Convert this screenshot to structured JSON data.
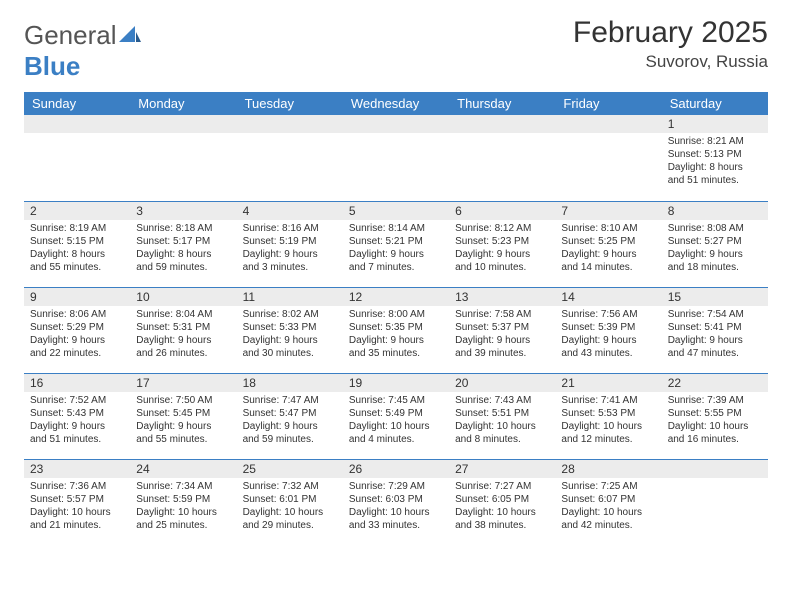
{
  "brand": {
    "text1": "General",
    "text2": "Blue"
  },
  "title": "February 2025",
  "location": "Suvorov, Russia",
  "headerBar": {
    "bg": "#3b7fc4",
    "fg": "#ffffff"
  },
  "dayHeaders": [
    "Sunday",
    "Monday",
    "Tuesday",
    "Wednesday",
    "Thursday",
    "Friday",
    "Saturday"
  ],
  "weeks": [
    [
      {
        "n": "",
        "sunrise": "",
        "sunset": "",
        "daylight": ""
      },
      {
        "n": "",
        "sunrise": "",
        "sunset": "",
        "daylight": ""
      },
      {
        "n": "",
        "sunrise": "",
        "sunset": "",
        "daylight": ""
      },
      {
        "n": "",
        "sunrise": "",
        "sunset": "",
        "daylight": ""
      },
      {
        "n": "",
        "sunrise": "",
        "sunset": "",
        "daylight": ""
      },
      {
        "n": "",
        "sunrise": "",
        "sunset": "",
        "daylight": ""
      },
      {
        "n": "1",
        "sunrise": "Sunrise: 8:21 AM",
        "sunset": "Sunset: 5:13 PM",
        "daylight": "Daylight: 8 hours and 51 minutes."
      }
    ],
    [
      {
        "n": "2",
        "sunrise": "Sunrise: 8:19 AM",
        "sunset": "Sunset: 5:15 PM",
        "daylight": "Daylight: 8 hours and 55 minutes."
      },
      {
        "n": "3",
        "sunrise": "Sunrise: 8:18 AM",
        "sunset": "Sunset: 5:17 PM",
        "daylight": "Daylight: 8 hours and 59 minutes."
      },
      {
        "n": "4",
        "sunrise": "Sunrise: 8:16 AM",
        "sunset": "Sunset: 5:19 PM",
        "daylight": "Daylight: 9 hours and 3 minutes."
      },
      {
        "n": "5",
        "sunrise": "Sunrise: 8:14 AM",
        "sunset": "Sunset: 5:21 PM",
        "daylight": "Daylight: 9 hours and 7 minutes."
      },
      {
        "n": "6",
        "sunrise": "Sunrise: 8:12 AM",
        "sunset": "Sunset: 5:23 PM",
        "daylight": "Daylight: 9 hours and 10 minutes."
      },
      {
        "n": "7",
        "sunrise": "Sunrise: 8:10 AM",
        "sunset": "Sunset: 5:25 PM",
        "daylight": "Daylight: 9 hours and 14 minutes."
      },
      {
        "n": "8",
        "sunrise": "Sunrise: 8:08 AM",
        "sunset": "Sunset: 5:27 PM",
        "daylight": "Daylight: 9 hours and 18 minutes."
      }
    ],
    [
      {
        "n": "9",
        "sunrise": "Sunrise: 8:06 AM",
        "sunset": "Sunset: 5:29 PM",
        "daylight": "Daylight: 9 hours and 22 minutes."
      },
      {
        "n": "10",
        "sunrise": "Sunrise: 8:04 AM",
        "sunset": "Sunset: 5:31 PM",
        "daylight": "Daylight: 9 hours and 26 minutes."
      },
      {
        "n": "11",
        "sunrise": "Sunrise: 8:02 AM",
        "sunset": "Sunset: 5:33 PM",
        "daylight": "Daylight: 9 hours and 30 minutes."
      },
      {
        "n": "12",
        "sunrise": "Sunrise: 8:00 AM",
        "sunset": "Sunset: 5:35 PM",
        "daylight": "Daylight: 9 hours and 35 minutes."
      },
      {
        "n": "13",
        "sunrise": "Sunrise: 7:58 AM",
        "sunset": "Sunset: 5:37 PM",
        "daylight": "Daylight: 9 hours and 39 minutes."
      },
      {
        "n": "14",
        "sunrise": "Sunrise: 7:56 AM",
        "sunset": "Sunset: 5:39 PM",
        "daylight": "Daylight: 9 hours and 43 minutes."
      },
      {
        "n": "15",
        "sunrise": "Sunrise: 7:54 AM",
        "sunset": "Sunset: 5:41 PM",
        "daylight": "Daylight: 9 hours and 47 minutes."
      }
    ],
    [
      {
        "n": "16",
        "sunrise": "Sunrise: 7:52 AM",
        "sunset": "Sunset: 5:43 PM",
        "daylight": "Daylight: 9 hours and 51 minutes."
      },
      {
        "n": "17",
        "sunrise": "Sunrise: 7:50 AM",
        "sunset": "Sunset: 5:45 PM",
        "daylight": "Daylight: 9 hours and 55 minutes."
      },
      {
        "n": "18",
        "sunrise": "Sunrise: 7:47 AM",
        "sunset": "Sunset: 5:47 PM",
        "daylight": "Daylight: 9 hours and 59 minutes."
      },
      {
        "n": "19",
        "sunrise": "Sunrise: 7:45 AM",
        "sunset": "Sunset: 5:49 PM",
        "daylight": "Daylight: 10 hours and 4 minutes."
      },
      {
        "n": "20",
        "sunrise": "Sunrise: 7:43 AM",
        "sunset": "Sunset: 5:51 PM",
        "daylight": "Daylight: 10 hours and 8 minutes."
      },
      {
        "n": "21",
        "sunrise": "Sunrise: 7:41 AM",
        "sunset": "Sunset: 5:53 PM",
        "daylight": "Daylight: 10 hours and 12 minutes."
      },
      {
        "n": "22",
        "sunrise": "Sunrise: 7:39 AM",
        "sunset": "Sunset: 5:55 PM",
        "daylight": "Daylight: 10 hours and 16 minutes."
      }
    ],
    [
      {
        "n": "23",
        "sunrise": "Sunrise: 7:36 AM",
        "sunset": "Sunset: 5:57 PM",
        "daylight": "Daylight: 10 hours and 21 minutes."
      },
      {
        "n": "24",
        "sunrise": "Sunrise: 7:34 AM",
        "sunset": "Sunset: 5:59 PM",
        "daylight": "Daylight: 10 hours and 25 minutes."
      },
      {
        "n": "25",
        "sunrise": "Sunrise: 7:32 AM",
        "sunset": "Sunset: 6:01 PM",
        "daylight": "Daylight: 10 hours and 29 minutes."
      },
      {
        "n": "26",
        "sunrise": "Sunrise: 7:29 AM",
        "sunset": "Sunset: 6:03 PM",
        "daylight": "Daylight: 10 hours and 33 minutes."
      },
      {
        "n": "27",
        "sunrise": "Sunrise: 7:27 AM",
        "sunset": "Sunset: 6:05 PM",
        "daylight": "Daylight: 10 hours and 38 minutes."
      },
      {
        "n": "28",
        "sunrise": "Sunrise: 7:25 AM",
        "sunset": "Sunset: 6:07 PM",
        "daylight": "Daylight: 10 hours and 42 minutes."
      },
      {
        "n": "",
        "sunrise": "",
        "sunset": "",
        "daylight": ""
      }
    ]
  ]
}
